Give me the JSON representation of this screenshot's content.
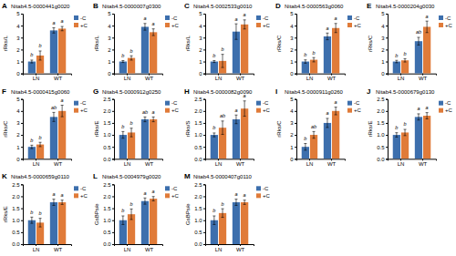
{
  "chart_data": [
    {
      "type": "bar",
      "panel_label": "A",
      "title": "Nitab4.5-0000441g0020",
      "ylabel": "rRks/L",
      "categories": [
        "LN",
        "WT"
      ],
      "series": [
        {
          "name": "-C",
          "color": "#3d6fad",
          "values": [
            1.0,
            3.6
          ],
          "errors": [
            0.12,
            0.22
          ],
          "letters": [
            "b",
            "a"
          ]
        },
        {
          "name": "+C",
          "color": "#e07b39",
          "values": [
            1.5,
            3.75
          ],
          "errors": [
            0.38,
            0.18
          ],
          "letters": [
            "b",
            "a"
          ]
        }
      ],
      "ylim": [
        0,
        5
      ],
      "yticks": [
        0,
        1,
        2,
        3,
        4,
        5
      ],
      "legend": "right"
    },
    {
      "type": "bar",
      "panel_label": "B",
      "title": "Nitab4.5-0000007g0300",
      "ylabel": "rRks/L",
      "categories": [
        "LN",
        "WT"
      ],
      "series": [
        {
          "name": "-C",
          "color": "#3d6fad",
          "values": [
            1.0,
            3.9
          ],
          "errors": [
            0.08,
            0.28
          ],
          "letters": [
            "b",
            "a"
          ]
        },
        {
          "name": "+C",
          "color": "#e07b39",
          "values": [
            1.3,
            3.45
          ],
          "errors": [
            0.18,
            0.28
          ],
          "letters": [
            "b",
            "a"
          ]
        }
      ],
      "ylim": [
        0,
        5
      ],
      "yticks": [
        0,
        1,
        2,
        3,
        4,
        5
      ],
      "legend": "right"
    },
    {
      "type": "bar",
      "panel_label": "C",
      "title": "Nitab4.5-0002533g0010",
      "ylabel": "rRks/L",
      "categories": [
        "LN",
        "WT"
      ],
      "series": [
        {
          "name": "-C",
          "color": "#3d6fad",
          "values": [
            1.0,
            3.5
          ],
          "errors": [
            0.08,
            0.65
          ],
          "letters": [
            "b",
            "a"
          ]
        },
        {
          "name": "+C",
          "color": "#e07b39",
          "values": [
            1.05,
            4.1
          ],
          "errors": [
            0.55,
            0.38
          ],
          "letters": [
            "b",
            "a"
          ]
        }
      ],
      "ylim": [
        0,
        5
      ],
      "yticks": [
        0,
        1,
        2,
        3,
        4,
        5
      ],
      "legend": "right"
    },
    {
      "type": "bar",
      "panel_label": "D",
      "title": "Nitab4.5-0000563g0060",
      "ylabel": "rRks/C",
      "categories": [
        "LN",
        "WT"
      ],
      "series": [
        {
          "name": "-C",
          "color": "#3d6fad",
          "values": [
            1.0,
            3.1
          ],
          "errors": [
            0.14,
            0.28
          ],
          "letters": [
            "b",
            "a"
          ]
        },
        {
          "name": "+C",
          "color": "#e07b39",
          "values": [
            1.15,
            3.8
          ],
          "errors": [
            0.18,
            0.38
          ],
          "letters": [
            "b",
            "a"
          ]
        }
      ],
      "ylim": [
        0,
        5
      ],
      "yticks": [
        0,
        1,
        2,
        3,
        4,
        5
      ],
      "legend": "right"
    },
    {
      "type": "bar",
      "panel_label": "E",
      "title": "Nitab4.5-0000204g0030",
      "ylabel": "rRks/C",
      "categories": [
        "LN",
        "WT"
      ],
      "series": [
        {
          "name": "-C",
          "color": "#3d6fad",
          "values": [
            1.0,
            2.7
          ],
          "errors": [
            0.1,
            0.32
          ],
          "letters": [
            "b",
            "ab"
          ]
        },
        {
          "name": "+C",
          "color": "#e07b39",
          "values": [
            1.1,
            3.9
          ],
          "errors": [
            0.14,
            0.48
          ],
          "letters": [
            "b",
            "a"
          ]
        }
      ],
      "ylim": [
        0,
        5
      ],
      "yticks": [
        0,
        1,
        2,
        3,
        4,
        5
      ],
      "legend": "right"
    },
    {
      "type": "bar",
      "panel_label": "F",
      "title": "Nitab4.5-0000415g0060",
      "ylabel": "rRks/C",
      "categories": [
        "LN",
        "WT"
      ],
      "series": [
        {
          "name": "-C",
          "color": "#3d6fad",
          "values": [
            1.0,
            3.5
          ],
          "errors": [
            0.14,
            0.38
          ],
          "letters": [
            "b",
            "ab"
          ]
        },
        {
          "name": "+C",
          "color": "#e07b39",
          "values": [
            1.2,
            4.0
          ],
          "errors": [
            0.18,
            0.48
          ],
          "letters": [
            "b",
            "a"
          ]
        }
      ],
      "ylim": [
        0,
        5
      ],
      "yticks": [
        0,
        1,
        2,
        3,
        4,
        5
      ],
      "legend": "right"
    },
    {
      "type": "bar",
      "panel_label": "G",
      "title": "Nitab4.5-0000912g0250",
      "ylabel": "rRks/E",
      "categories": [
        "LN",
        "WT"
      ],
      "series": [
        {
          "name": "-C",
          "color": "#3d6fad",
          "values": [
            1.0,
            1.65
          ],
          "errors": [
            0.14,
            0.1
          ],
          "letters": [
            "b",
            "ab"
          ]
        },
        {
          "name": "+C",
          "color": "#e07b39",
          "values": [
            1.1,
            1.65
          ],
          "errors": [
            0.18,
            0.1
          ],
          "letters": [
            "b",
            "a"
          ]
        }
      ],
      "ylim": [
        0,
        2.5
      ],
      "yticks": [
        {
          "value": 0,
          "label": "0.0"
        },
        {
          "value": 0.5,
          "label": "0.5"
        },
        {
          "value": 1,
          "label": "1.0"
        },
        {
          "value": 1.5,
          "label": "1.5"
        },
        {
          "value": 2,
          "label": "2.0"
        },
        {
          "value": 2.5,
          "label": "2.5"
        }
      ],
      "legend": "right"
    },
    {
      "type": "bar",
      "panel_label": "H",
      "title": "Nitab4.5-0000082g0090",
      "ylabel": "rRks/S",
      "categories": [
        "LN",
        "WT"
      ],
      "series": [
        {
          "name": "-C",
          "color": "#3d6fad",
          "values": [
            1.0,
            1.65
          ],
          "errors": [
            0.08,
            0.18
          ],
          "letters": [
            "b",
            "a"
          ]
        },
        {
          "name": "+C",
          "color": "#e07b39",
          "values": [
            1.3,
            2.1
          ],
          "errors": [
            0.28,
            0.32
          ],
          "letters": [
            "ab",
            "a"
          ]
        }
      ],
      "ylim": [
        0,
        2.5
      ],
      "yticks": [
        {
          "value": 0,
          "label": "0.0"
        },
        {
          "value": 0.5,
          "label": "0.5"
        },
        {
          "value": 1,
          "label": "1.0"
        },
        {
          "value": 1.5,
          "label": "1.5"
        },
        {
          "value": 2,
          "label": "2.0"
        },
        {
          "value": 2.5,
          "label": "2.5"
        }
      ],
      "legend": "right"
    },
    {
      "type": "bar",
      "panel_label": "I",
      "title": "Nitab4.5-0000911g0260",
      "ylabel": "rRks/C",
      "categories": [
        "LN",
        "WT"
      ],
      "series": [
        {
          "name": "-C",
          "color": "#3d6fad",
          "values": [
            1.0,
            3.0
          ],
          "errors": [
            0.28,
            0.38
          ],
          "letters": [
            "b",
            "a"
          ]
        },
        {
          "name": "+C",
          "color": "#e07b39",
          "values": [
            2.0,
            4.0
          ],
          "errors": [
            0.28,
            0.32
          ],
          "letters": [
            "ab",
            "a"
          ]
        }
      ],
      "ylim": [
        0,
        5
      ],
      "yticks": [
        0,
        1,
        2,
        3,
        4,
        5
      ],
      "legend": "right"
    },
    {
      "type": "bar",
      "panel_label": "J",
      "title": "Nitab4.5-0000679g0130",
      "ylabel": "rRks/E",
      "categories": [
        "LN",
        "WT"
      ],
      "series": [
        {
          "name": "-C",
          "color": "#3d6fad",
          "values": [
            1.0,
            1.75
          ],
          "errors": [
            0.09,
            0.13
          ],
          "letters": [
            "b",
            "a"
          ]
        },
        {
          "name": "+C",
          "color": "#e07b39",
          "values": [
            1.1,
            1.8
          ],
          "errors": [
            0.13,
            0.13
          ],
          "letters": [
            "b",
            "a"
          ]
        }
      ],
      "ylim": [
        0,
        2.5
      ],
      "yticks": [
        {
          "value": 0,
          "label": "0.0"
        },
        {
          "value": 0.5,
          "label": "0.5"
        },
        {
          "value": 1,
          "label": "1.0"
        },
        {
          "value": 1.5,
          "label": "1.5"
        },
        {
          "value": 2,
          "label": "2.0"
        },
        {
          "value": 2.5,
          "label": "2.5"
        }
      ],
      "legend": "right"
    },
    {
      "type": "bar",
      "panel_label": "K",
      "title": "Nitab4.5-0000659g0110",
      "ylabel": "rRks/E",
      "categories": [
        "LN",
        "WT"
      ],
      "series": [
        {
          "name": "-C",
          "color": "#3d6fad",
          "values": [
            1.0,
            1.75
          ],
          "errors": [
            0.13,
            0.13
          ],
          "letters": [
            "b",
            "a"
          ]
        },
        {
          "name": "+C",
          "color": "#e07b39",
          "values": [
            0.9,
            1.75
          ],
          "errors": [
            0.18,
            0.09
          ],
          "letters": [
            "b",
            "a"
          ]
        }
      ],
      "ylim": [
        0,
        2.5
      ],
      "yticks": [
        {
          "value": 0,
          "label": "0.0"
        },
        {
          "value": 0.5,
          "label": "0.5"
        },
        {
          "value": 1,
          "label": "1.0"
        },
        {
          "value": 1.5,
          "label": "1.5"
        },
        {
          "value": 2,
          "label": "2.0"
        },
        {
          "value": 2.5,
          "label": "2.5"
        }
      ],
      "legend": "right"
    },
    {
      "type": "bar",
      "panel_label": "L",
      "title": "Nitab4.5-0004979g0020",
      "ylabel": "GsBPs/e",
      "categories": [
        "LN",
        "WT"
      ],
      "series": [
        {
          "name": "-C",
          "color": "#3d6fad",
          "values": [
            1.0,
            1.8
          ],
          "errors": [
            0.18,
            0.13
          ],
          "letters": [
            "b",
            "a"
          ]
        },
        {
          "name": "+C",
          "color": "#e07b39",
          "values": [
            1.25,
            1.9
          ],
          "errors": [
            0.22,
            0.09
          ],
          "letters": [
            "b",
            "a"
          ]
        }
      ],
      "ylim": [
        0,
        2.5
      ],
      "yticks": [
        {
          "value": 0,
          "label": "0.0"
        },
        {
          "value": 0.5,
          "label": "0.5"
        },
        {
          "value": 1,
          "label": "1.0"
        },
        {
          "value": 1.5,
          "label": "1.5"
        },
        {
          "value": 2,
          "label": "2.0"
        },
        {
          "value": 2.5,
          "label": "2.5"
        }
      ],
      "legend": "right"
    },
    {
      "type": "bar",
      "panel_label": "M",
      "title": "Nitab4.5-0000407g0110",
      "ylabel": "GsBPs/e",
      "categories": [
        "LN",
        "WT"
      ],
      "series": [
        {
          "name": "-C",
          "color": "#3d6fad",
          "values": [
            1.0,
            1.75
          ],
          "errors": [
            0.18,
            0.13
          ],
          "letters": [
            "b",
            "a"
          ]
        },
        {
          "name": "+C",
          "color": "#e07b39",
          "values": [
            1.3,
            1.75
          ],
          "errors": [
            0.18,
            0.09
          ],
          "letters": [
            "b",
            "a"
          ]
        }
      ],
      "ylim": [
        0,
        2.5
      ],
      "yticks": [
        {
          "value": 0,
          "label": "0.0"
        },
        {
          "value": 0.5,
          "label": "0.5"
        },
        {
          "value": 1,
          "label": "1.0"
        },
        {
          "value": 1.5,
          "label": "1.5"
        },
        {
          "value": 2,
          "label": "2.0"
        },
        {
          "value": 2.5,
          "label": "2.5"
        }
      ],
      "legend": "right"
    }
  ]
}
